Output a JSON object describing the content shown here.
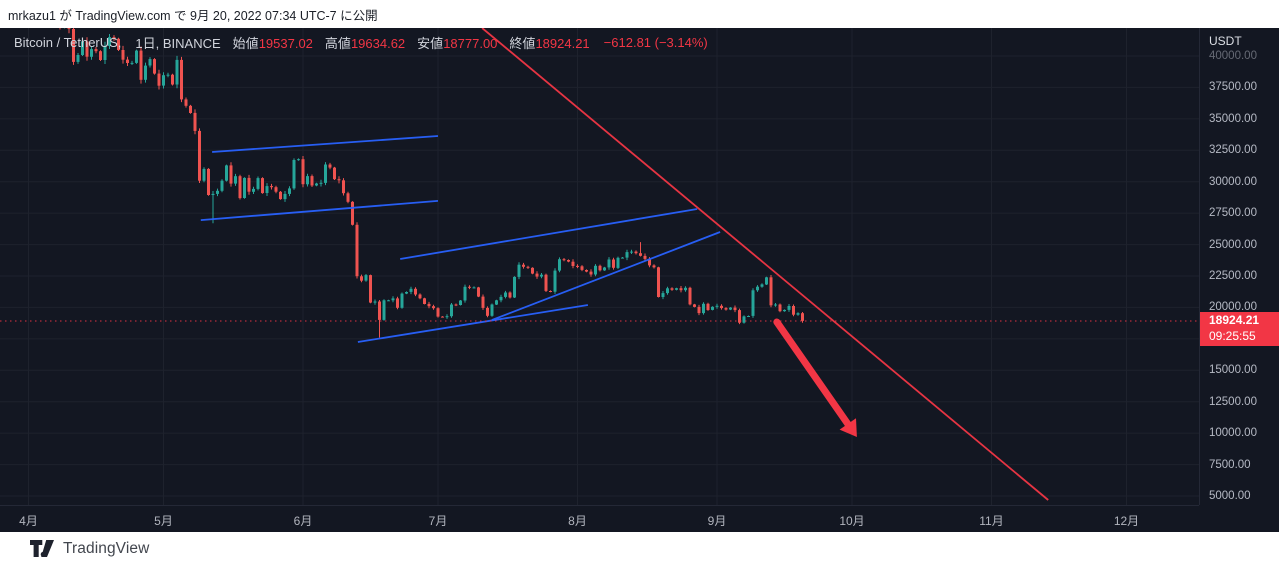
{
  "attribution": {
    "text": "mrkazu1 が TradingView.com で 9月 20, 2022 07:34 UTC-7 に公開"
  },
  "header": {
    "symbol_title": "Bitcoin / TetherUS,",
    "interval_exchange": "1日, BINANCE",
    "ohlc": [
      {
        "label": "始値",
        "value": "19537.02"
      },
      {
        "label": "高値",
        "value": "19634.62"
      },
      {
        "label": "安値",
        "value": "18777.00"
      },
      {
        "label": "終値",
        "value": "18924.21"
      }
    ],
    "change": "−612.81 (−3.14%)"
  },
  "price_axis": {
    "currency": "USDT",
    "labels": [
      "40000.00",
      "37500.00",
      "35000.00",
      "32500.00",
      "30000.00",
      "27500.00",
      "25000.00",
      "22500.00",
      "20000.00",
      "15000.00",
      "12500.00",
      "10000.00",
      "7500.00",
      "5000.00"
    ],
    "last_price": "18924.21",
    "countdown": "09:25:55"
  },
  "time_axis": {
    "labels": [
      "4月",
      "5月",
      "6月",
      "7月",
      "8月",
      "9月",
      "10月",
      "11月",
      "12月"
    ]
  },
  "logo": {
    "name": "TradingView"
  },
  "colors": {
    "background": "#131722",
    "grid": "#1e222d",
    "up": "#26a69a",
    "down": "#ef5350",
    "drawing_red": "#f23645",
    "drawing_blue": "#2962ff",
    "badge": "#f23645",
    "axis_text": "#b6bac5"
  },
  "chart_data": {
    "type": "candlestick",
    "symbol": "Bitcoin / TetherUS",
    "exchange": "BINANCE",
    "interval": "1日",
    "visible_months": [
      "4月",
      "5月",
      "6月",
      "7月",
      "8月",
      "9月",
      "10月",
      "11月",
      "12月"
    ],
    "y_ticks": [
      5000,
      7500,
      10000,
      12500,
      15000,
      17500,
      20000,
      22500,
      25000,
      27500,
      30000,
      32500,
      35000,
      37500,
      40000
    ],
    "ylim_visible": [
      4400,
      42230
    ],
    "start_date": "2022-04-01",
    "last_date": "2022-09-20",
    "first_open": 45540,
    "closes": [
      46280,
      45810,
      46400,
      46600,
      45500,
      43200,
      43500,
      42280,
      42750,
      42150,
      39530,
      40080,
      41160,
      39940,
      40550,
      40380,
      39680,
      40800,
      41500,
      41370,
      40480,
      39710,
      39440,
      39450,
      40430,
      38110,
      39240,
      39750,
      38600,
      37640,
      38470,
      38510,
      37730,
      39690,
      36550,
      36040,
      35470,
      34040,
      30080,
      31020,
      28940,
      29030,
      29280,
      30080,
      31300,
      29850,
      30440,
      28700,
      30300,
      29200,
      29430,
      30290,
      29100,
      29650,
      29560,
      29200,
      28620,
      29030,
      29470,
      31730,
      31790,
      29800,
      30450,
      29700,
      29860,
      29910,
      31370,
      31120,
      30200,
      30110,
      29080,
      28400,
      26570,
      22480,
      22130,
      22570,
      20380,
      20470,
      19010,
      20570,
      20570,
      20720,
      19970,
      21100,
      21230,
      21480,
      21030,
      20730,
      20280,
      20100,
      19940,
      19270,
      19240,
      19300,
      20230,
      20190,
      20550,
      21640,
      21590,
      21590,
      20860,
      19960,
      19330,
      20230,
      20570,
      20840,
      21190,
      20790,
      22430,
      23400,
      23230,
      23150,
      22690,
      22450,
      22600,
      21310,
      21250,
      22930,
      23840,
      23770,
      23640,
      23300,
      23270,
      22980,
      22850,
      22620,
      23310,
      22950,
      23180,
      23810,
      23150,
      23950,
      23960,
      24400,
      24440,
      24310,
      24100,
      23860,
      23340,
      23190,
      20830,
      21140,
      21520,
      21400,
      21530,
      21370,
      21560,
      20240,
      20040,
      19550,
      20290,
      19800,
      20050,
      20130,
      19950,
      19830,
      19990,
      19790,
      18790,
      19290,
      19320,
      21360,
      21650,
      21830,
      22400,
      20170,
      20230,
      19700,
      19800,
      20110,
      19420,
      19537,
      18924.21
    ],
    "overrides": {
      "41": {
        "low": 26700
      },
      "78": {
        "low": 17600
      },
      "136": {
        "high": 25200
      },
      "172": {
        "open": 19537.02,
        "high": 19634.62,
        "low": 18777.0,
        "close": 18924.21
      }
    },
    "month_ticks": [
      {
        "label": "4月",
        "day": 0
      },
      {
        "label": "5月",
        "day": 30
      },
      {
        "label": "6月",
        "day": 61
      },
      {
        "label": "7月",
        "day": 91
      },
      {
        "label": "8月",
        "day": 122
      },
      {
        "label": "9月",
        "day": 153
      },
      {
        "label": "10月",
        "day": 183
      },
      {
        "label": "11月",
        "day": 214
      },
      {
        "label": "12月",
        "day": 244
      }
    ],
    "price_line": 18924.21,
    "trendlines": [
      {
        "color": "blue",
        "d1": 40.8,
        "p1": 32360,
        "d2": 91.0,
        "p2": 33640
      },
      {
        "color": "blue",
        "d1": 38.3,
        "p1": 26950,
        "d2": 91.0,
        "p2": 28470
      },
      {
        "color": "blue",
        "d1": 82.6,
        "p1": 23850,
        "d2": 148.6,
        "p2": 27830
      },
      {
        "color": "blue",
        "d1": 103.0,
        "p1": 19000,
        "d2": 153.7,
        "p2": 26000
      },
      {
        "color": "blue",
        "d1": 73.2,
        "p1": 17250,
        "d2": 124.3,
        "p2": 20190
      },
      {
        "color": "red",
        "d1": 100.8,
        "p1": 42230,
        "d2": 226.6,
        "p2": 4680
      }
    ],
    "arrow": {
      "d1": 166.3,
      "p1": 18840,
      "d2": 184.1,
      "p2": 9690
    }
  }
}
